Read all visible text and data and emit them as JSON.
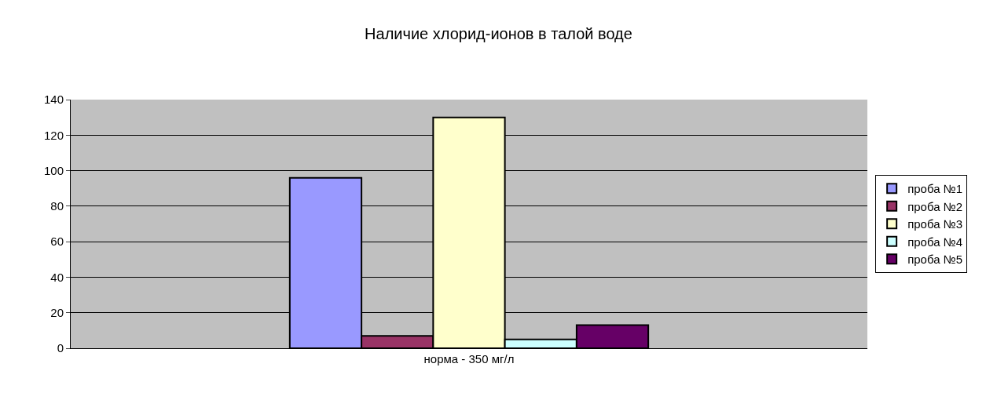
{
  "chart_data": {
    "type": "bar",
    "title": "Наличие хлорид-ионов в талой воде",
    "categories": [
      "норма - 350 мг/л"
    ],
    "series": [
      {
        "name": "проба №1",
        "color": "#9999ff",
        "values": [
          96
        ]
      },
      {
        "name": "проба №2",
        "color": "#993366",
        "values": [
          7
        ]
      },
      {
        "name": "проба №3",
        "color": "#ffffcc",
        "values": [
          130
        ]
      },
      {
        "name": "проба №4",
        "color": "#ccffff",
        "values": [
          5
        ]
      },
      {
        "name": "проба №5",
        "color": "#660066",
        "values": [
          13
        ]
      }
    ],
    "ylim": [
      0,
      140
    ],
    "yticks": [
      0,
      20,
      40,
      60,
      80,
      100,
      120,
      140
    ],
    "grid": "y",
    "legend": "right"
  }
}
